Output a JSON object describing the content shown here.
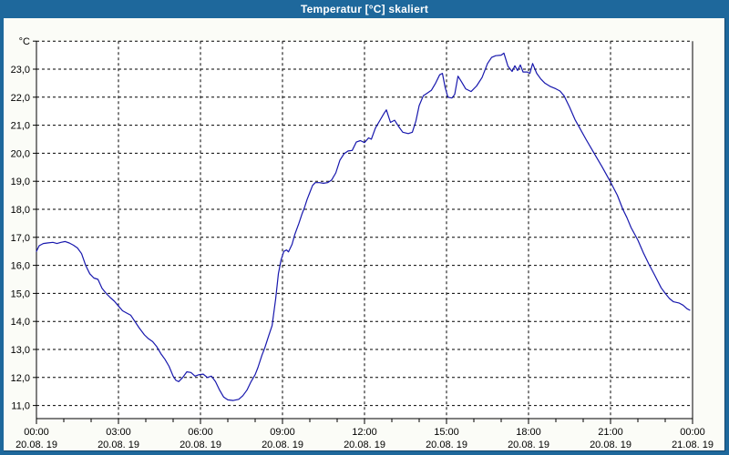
{
  "window": {
    "title": "Temperatur [°C] skaliert"
  },
  "colors": {
    "titlebar": "#1e689c",
    "window_border": "#1e689c",
    "border_shadow": "#16486e",
    "background": "#fbfcf7",
    "plot_background": "#ffffff",
    "grid": "#000000",
    "curve": "#1717ad",
    "title_text": "#ffffff",
    "label_text": "#000000"
  },
  "chart_data": {
    "type": "line",
    "title": "Temperatur [°C] skaliert",
    "ylabel_unit": "°C",
    "xlabel": "",
    "xlim_hours": [
      0,
      24
    ],
    "ylim": [
      10.5,
      24.2
    ],
    "grid": "dashed",
    "legend": "none",
    "minor_tick_every_hours": 1,
    "major_tick_every_hours": 3,
    "y_ticks": [
      {
        "value": 24,
        "label": "°C"
      },
      {
        "value": 23,
        "label": "23,0"
      },
      {
        "value": 22,
        "label": "22,0"
      },
      {
        "value": 21,
        "label": "21,0"
      },
      {
        "value": 20,
        "label": "20,0"
      },
      {
        "value": 19,
        "label": "19,0"
      },
      {
        "value": 18,
        "label": "18,0"
      },
      {
        "value": 17,
        "label": "17,0"
      },
      {
        "value": 16,
        "label": "16,0"
      },
      {
        "value": 15,
        "label": "15,0"
      },
      {
        "value": 14,
        "label": "14,0"
      },
      {
        "value": 13,
        "label": "13,0"
      },
      {
        "value": 12,
        "label": "12,0"
      },
      {
        "value": 11,
        "label": "11,0"
      }
    ],
    "x_ticks": [
      {
        "hour": 0,
        "time": "00:00",
        "date": "20.08. 19"
      },
      {
        "hour": 3,
        "time": "03:00",
        "date": "20.08. 19"
      },
      {
        "hour": 6,
        "time": "06:00",
        "date": "20.08. 19"
      },
      {
        "hour": 9,
        "time": "09:00",
        "date": "20.08. 19"
      },
      {
        "hour": 12,
        "time": "12:00",
        "date": "20.08. 19"
      },
      {
        "hour": 15,
        "time": "15:00",
        "date": "20.08. 19"
      },
      {
        "hour": 18,
        "time": "18:00",
        "date": "20.08. 19"
      },
      {
        "hour": 21,
        "time": "21:00",
        "date": "20.08. 19"
      },
      {
        "hour": 24,
        "time": "00:00",
        "date": "21.08. 19"
      }
    ],
    "series": [
      {
        "name": "Temperatur [°C]",
        "color": "#1717ad",
        "points": [
          [
            0.0,
            16.5
          ],
          [
            0.1,
            16.7
          ],
          [
            0.25,
            16.78
          ],
          [
            0.4,
            16.8
          ],
          [
            0.6,
            16.82
          ],
          [
            0.75,
            16.78
          ],
          [
            0.9,
            16.82
          ],
          [
            1.05,
            16.85
          ],
          [
            1.2,
            16.8
          ],
          [
            1.35,
            16.72
          ],
          [
            1.5,
            16.62
          ],
          [
            1.65,
            16.42
          ],
          [
            1.8,
            16.0
          ],
          [
            1.95,
            15.7
          ],
          [
            2.1,
            15.55
          ],
          [
            2.25,
            15.5
          ],
          [
            2.4,
            15.18
          ],
          [
            2.55,
            15.0
          ],
          [
            2.7,
            14.85
          ],
          [
            2.85,
            14.72
          ],
          [
            3.0,
            14.55
          ],
          [
            3.15,
            14.38
          ],
          [
            3.3,
            14.3
          ],
          [
            3.45,
            14.22
          ],
          [
            3.6,
            14.0
          ],
          [
            3.75,
            13.78
          ],
          [
            3.95,
            13.52
          ],
          [
            4.1,
            13.38
          ],
          [
            4.25,
            13.28
          ],
          [
            4.4,
            13.1
          ],
          [
            4.55,
            12.85
          ],
          [
            4.7,
            12.65
          ],
          [
            4.85,
            12.4
          ],
          [
            5.0,
            12.05
          ],
          [
            5.1,
            11.9
          ],
          [
            5.2,
            11.85
          ],
          [
            5.35,
            12.0
          ],
          [
            5.5,
            12.2
          ],
          [
            5.65,
            12.18
          ],
          [
            5.8,
            12.05
          ],
          [
            5.95,
            12.1
          ],
          [
            6.1,
            12.12
          ],
          [
            6.25,
            12.0
          ],
          [
            6.4,
            12.05
          ],
          [
            6.55,
            11.85
          ],
          [
            6.7,
            11.55
          ],
          [
            6.85,
            11.3
          ],
          [
            7.0,
            11.2
          ],
          [
            7.2,
            11.18
          ],
          [
            7.4,
            11.22
          ],
          [
            7.55,
            11.35
          ],
          [
            7.7,
            11.55
          ],
          [
            7.85,
            11.85
          ],
          [
            8.0,
            12.1
          ],
          [
            8.1,
            12.35
          ],
          [
            8.25,
            12.8
          ],
          [
            8.35,
            13.05
          ],
          [
            8.5,
            13.5
          ],
          [
            8.62,
            13.85
          ],
          [
            8.75,
            14.8
          ],
          [
            8.85,
            15.7
          ],
          [
            8.95,
            16.2
          ],
          [
            9.05,
            16.5
          ],
          [
            9.15,
            16.55
          ],
          [
            9.22,
            16.48
          ],
          [
            9.35,
            16.75
          ],
          [
            9.45,
            17.1
          ],
          [
            9.6,
            17.5
          ],
          [
            9.72,
            17.85
          ],
          [
            9.8,
            18.05
          ],
          [
            9.9,
            18.35
          ],
          [
            10.0,
            18.6
          ],
          [
            10.1,
            18.85
          ],
          [
            10.2,
            18.95
          ],
          [
            10.35,
            18.95
          ],
          [
            10.5,
            18.93
          ],
          [
            10.65,
            18.95
          ],
          [
            10.8,
            19.05
          ],
          [
            10.95,
            19.3
          ],
          [
            11.1,
            19.75
          ],
          [
            11.25,
            19.98
          ],
          [
            11.4,
            20.08
          ],
          [
            11.55,
            20.1
          ],
          [
            11.7,
            20.4
          ],
          [
            11.85,
            20.45
          ],
          [
            12.0,
            20.38
          ],
          [
            12.15,
            20.55
          ],
          [
            12.25,
            20.5
          ],
          [
            12.4,
            20.9
          ],
          [
            12.55,
            21.15
          ],
          [
            12.7,
            21.4
          ],
          [
            12.8,
            21.55
          ],
          [
            12.95,
            21.1
          ],
          [
            13.1,
            21.18
          ],
          [
            13.25,
            20.95
          ],
          [
            13.4,
            20.75
          ],
          [
            13.6,
            20.7
          ],
          [
            13.75,
            20.75
          ],
          [
            13.88,
            21.15
          ],
          [
            14.0,
            21.7
          ],
          [
            14.15,
            22.05
          ],
          [
            14.3,
            22.15
          ],
          [
            14.45,
            22.25
          ],
          [
            14.6,
            22.5
          ],
          [
            14.75,
            22.8
          ],
          [
            14.85,
            22.85
          ],
          [
            14.95,
            22.35
          ],
          [
            15.05,
            22.0
          ],
          [
            15.2,
            21.97
          ],
          [
            15.3,
            22.1
          ],
          [
            15.42,
            22.75
          ],
          [
            15.55,
            22.55
          ],
          [
            15.7,
            22.3
          ],
          [
            15.9,
            22.2
          ],
          [
            16.1,
            22.4
          ],
          [
            16.3,
            22.7
          ],
          [
            16.5,
            23.2
          ],
          [
            16.65,
            23.42
          ],
          [
            16.8,
            23.48
          ],
          [
            17.0,
            23.5
          ],
          [
            17.1,
            23.57
          ],
          [
            17.25,
            23.1
          ],
          [
            17.4,
            22.92
          ],
          [
            17.5,
            23.12
          ],
          [
            17.6,
            22.95
          ],
          [
            17.7,
            23.15
          ],
          [
            17.8,
            22.9
          ],
          [
            17.95,
            22.9
          ],
          [
            18.05,
            22.85
          ],
          [
            18.15,
            23.2
          ],
          [
            18.3,
            22.85
          ],
          [
            18.45,
            22.65
          ],
          [
            18.6,
            22.5
          ],
          [
            18.8,
            22.38
          ],
          [
            19.0,
            22.3
          ],
          [
            19.15,
            22.22
          ],
          [
            19.3,
            22.05
          ],
          [
            19.5,
            21.65
          ],
          [
            19.7,
            21.2
          ],
          [
            19.9,
            20.85
          ],
          [
            20.1,
            20.5
          ],
          [
            20.4,
            20.0
          ],
          [
            20.7,
            19.5
          ],
          [
            21.0,
            18.97
          ],
          [
            21.25,
            18.5
          ],
          [
            21.45,
            18.0
          ],
          [
            21.6,
            17.7
          ],
          [
            21.75,
            17.35
          ],
          [
            22.0,
            16.9
          ],
          [
            22.2,
            16.45
          ],
          [
            22.4,
            16.05
          ],
          [
            22.6,
            15.68
          ],
          [
            22.85,
            15.2
          ],
          [
            23.0,
            15.0
          ],
          [
            23.15,
            14.82
          ],
          [
            23.3,
            14.7
          ],
          [
            23.5,
            14.66
          ],
          [
            23.65,
            14.58
          ],
          [
            23.8,
            14.45
          ],
          [
            23.9,
            14.4
          ]
        ]
      }
    ]
  }
}
